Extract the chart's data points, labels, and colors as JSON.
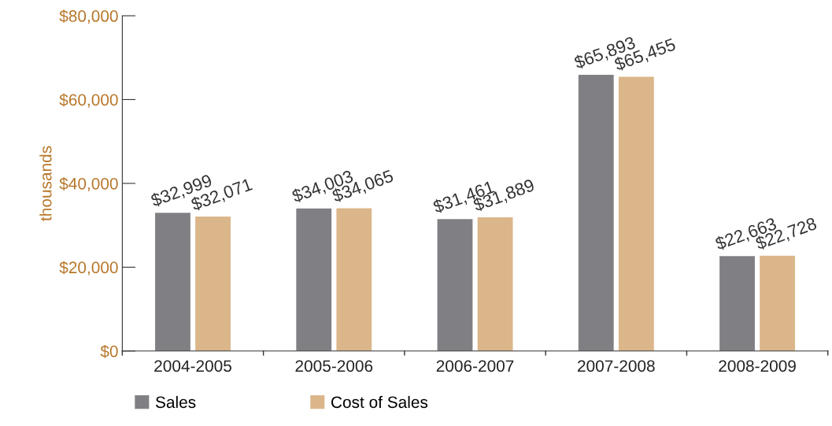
{
  "chart_data": {
    "type": "bar",
    "ylabel": "thousands",
    "categories": [
      "2004-2005",
      "2005-2006",
      "2006-2007",
      "2007-2008",
      "2008-2009"
    ],
    "series": [
      {
        "name": "Sales",
        "color": "#808084",
        "values": [
          32999,
          34003,
          31461,
          65893,
          22663
        ],
        "value_labels": [
          "$32,999",
          "$34,003",
          "$31,461",
          "$65,893",
          "$22,663"
        ]
      },
      {
        "name": "Cost of Sales",
        "color": "#dbb68a",
        "values": [
          32071,
          34065,
          31889,
          65455,
          22728
        ],
        "value_labels": [
          "$32,071",
          "$34,065",
          "$31,889",
          "$65,455",
          "$22,728"
        ]
      }
    ],
    "ylim": [
      0,
      80000
    ],
    "yticks": [
      {
        "value": 0,
        "label": "$0"
      },
      {
        "value": 20000,
        "label": "$20,000"
      },
      {
        "value": 40000,
        "label": "$40,000"
      },
      {
        "value": 60000,
        "label": "$60,000"
      },
      {
        "value": 80000,
        "label": "$80,000"
      }
    ],
    "grid": false,
    "legend": "bottom"
  }
}
